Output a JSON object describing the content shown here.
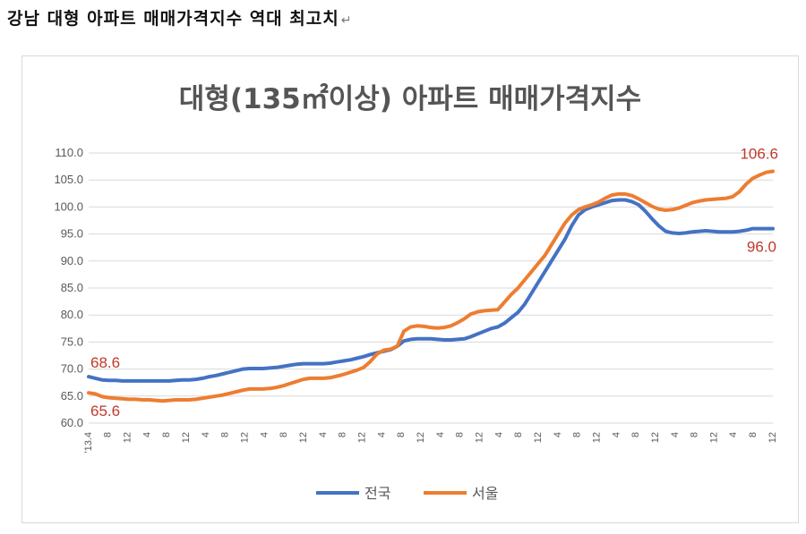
{
  "page": {
    "heading": "강남 대형 아파트 매매가격지수 역대 최고치",
    "paragraph_mark": "↵"
  },
  "chart_data": {
    "type": "line",
    "title": "대형(135㎡이상) 아파트 매매가격지수",
    "xlabel": "",
    "ylabel": "",
    "ylim": [
      60,
      110
    ],
    "yticks": [
      "110.0",
      "105.0",
      "100.0",
      "95.0",
      "90.0",
      "85.0",
      "80.0",
      "75.0",
      "70.0",
      "65.0",
      "60.0"
    ],
    "x_tick_labels": [
      "'13.4",
      "8",
      "12",
      "4",
      "8",
      "12",
      "4",
      "8",
      "12",
      "4",
      "8",
      "12",
      "4",
      "8",
      "12",
      "4",
      "8",
      "12",
      "4",
      "8",
      "12",
      "4",
      "8",
      "12",
      "4",
      "8",
      "12",
      "4",
      "8",
      "12",
      "4",
      "8",
      "12",
      "4",
      "8",
      "12"
    ],
    "grid": true,
    "legend_position": "bottom",
    "series": [
      {
        "name": "전국",
        "color": "#4472c4",
        "start_label": "68.6",
        "end_label": "96.0",
        "values": [
          68.6,
          68.3,
          68.0,
          67.9,
          67.9,
          67.8,
          67.8,
          67.8,
          67.8,
          67.8,
          67.8,
          67.8,
          67.8,
          67.9,
          68.0,
          68.0,
          68.1,
          68.3,
          68.6,
          68.8,
          69.1,
          69.4,
          69.7,
          70.0,
          70.1,
          70.1,
          70.1,
          70.2,
          70.3,
          70.5,
          70.7,
          70.9,
          71.0,
          71.0,
          71.0,
          71.0,
          71.1,
          71.3,
          71.5,
          71.7,
          72.0,
          72.3,
          72.7,
          73.0,
          73.3,
          73.6,
          74.2,
          75.2,
          75.5,
          75.6,
          75.6,
          75.6,
          75.5,
          75.4,
          75.4,
          75.5,
          75.6,
          76.0,
          76.5,
          77.0,
          77.5,
          77.8,
          78.5,
          79.5,
          80.5,
          82.0,
          84.0,
          86.0,
          88.0,
          90.0,
          92.0,
          94.0,
          96.5,
          98.5,
          99.5,
          100.0,
          100.4,
          100.8,
          101.2,
          101.3,
          101.3,
          101.0,
          100.4,
          99.2,
          97.8,
          96.5,
          95.5,
          95.2,
          95.1,
          95.2,
          95.4,
          95.5,
          95.6,
          95.5,
          95.4,
          95.4,
          95.4,
          95.5,
          95.7,
          96.0,
          96.0,
          96.0,
          96.0
        ]
      },
      {
        "name": "서울",
        "color": "#ed7d31",
        "start_label": "65.6",
        "end_label": "106.6",
        "values": [
          65.6,
          65.4,
          64.9,
          64.7,
          64.6,
          64.5,
          64.4,
          64.4,
          64.3,
          64.3,
          64.2,
          64.1,
          64.2,
          64.3,
          64.3,
          64.3,
          64.4,
          64.6,
          64.8,
          65.0,
          65.2,
          65.5,
          65.8,
          66.1,
          66.3,
          66.3,
          66.3,
          66.4,
          66.6,
          66.9,
          67.3,
          67.7,
          68.1,
          68.3,
          68.3,
          68.3,
          68.4,
          68.7,
          69.0,
          69.4,
          69.8,
          70.3,
          71.4,
          72.8,
          73.5,
          73.7,
          74.2,
          77.0,
          77.8,
          78.0,
          77.9,
          77.7,
          77.6,
          77.7,
          78.0,
          78.6,
          79.3,
          80.2,
          80.6,
          80.8,
          80.9,
          81.0,
          82.4,
          83.8,
          85.0,
          86.5,
          88.0,
          89.5,
          91.0,
          93.0,
          95.0,
          97.0,
          98.5,
          99.5,
          100.0,
          100.4,
          100.9,
          101.6,
          102.2,
          102.4,
          102.4,
          102.1,
          101.5,
          100.8,
          100.1,
          99.6,
          99.4,
          99.5,
          99.8,
          100.3,
          100.8,
          101.1,
          101.3,
          101.4,
          101.5,
          101.6,
          101.9,
          102.8,
          104.2,
          105.3,
          105.9,
          106.4,
          106.6
        ]
      }
    ]
  }
}
